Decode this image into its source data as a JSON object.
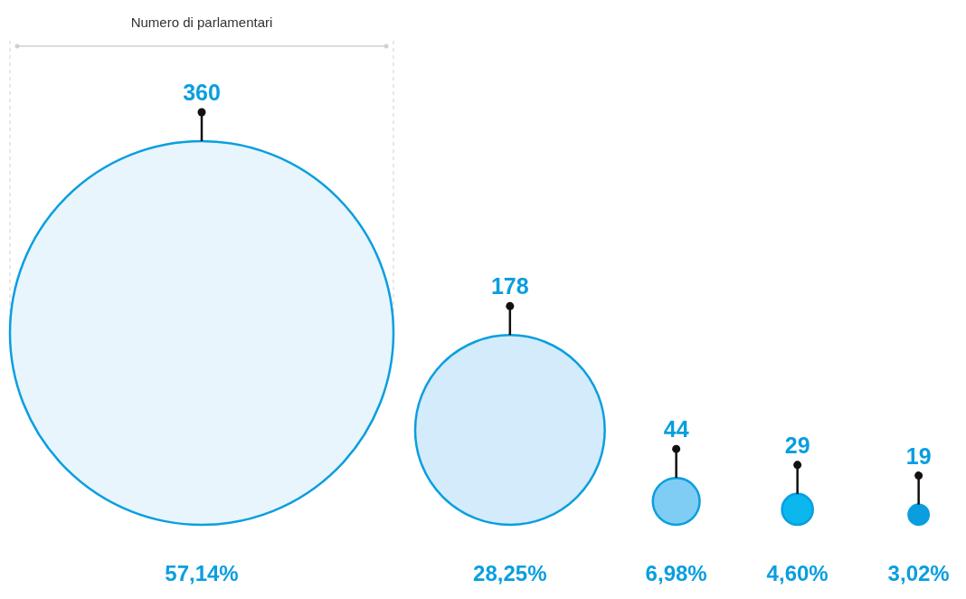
{
  "chart_data": {
    "type": "other",
    "annotations": [
      "Numero di parlamentari",
      "57,14%",
      "28,25%",
      "6,98%",
      "4,60%",
      "3,02%"
    ],
    "categories": [
      null,
      null,
      null,
      null,
      null
    ],
    "data_labels": true,
    "series": [
      {
        "values": [
          360,
          178,
          44,
          29,
          19
        ],
        "colors": [
          "#e8f5fc",
          "#d3ebfa",
          "#7fcdf4",
          "#0bb8ee",
          "#0a9ee0"
        ],
        "color": "#0a9ee0"
      }
    ]
  }
}
